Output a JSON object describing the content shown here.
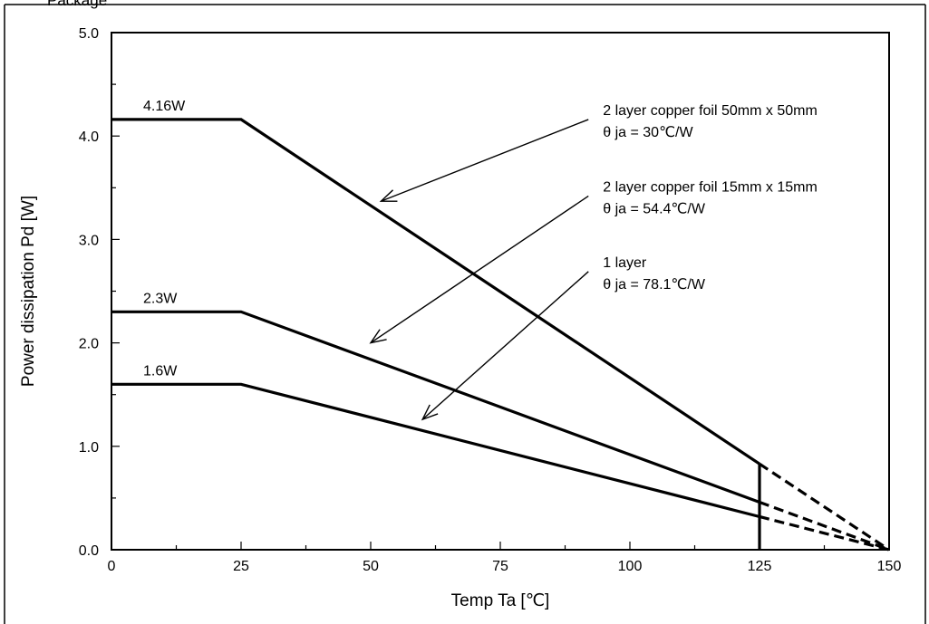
{
  "header_fragment": "Package",
  "chart_data": {
    "type": "line",
    "title": "",
    "xlabel": "Temp Ta [℃]",
    "ylabel": "Power dissipation Pd [W]",
    "xlim": [
      0,
      150
    ],
    "ylim": [
      0,
      5
    ],
    "xticks": [
      0,
      25,
      50,
      75,
      100,
      125,
      150
    ],
    "xtick_labels": [
      "0",
      "25",
      "50",
      "75",
      "100",
      "125",
      "150"
    ],
    "yticks": [
      0,
      1,
      2,
      3,
      4,
      5
    ],
    "ytick_labels": [
      "0.0",
      "1.0",
      "2.0",
      "3.0",
      "4.0",
      "5.0"
    ],
    "grid": false,
    "cutoff_x": 125,
    "series": [
      {
        "value_label": "4.16W",
        "points": [
          [
            0,
            4.16
          ],
          [
            25,
            4.16
          ],
          [
            125,
            0.83
          ]
        ],
        "extrapolated": [
          [
            125,
            0.83
          ],
          [
            150,
            0
          ]
        ]
      },
      {
        "value_label": "2.3W",
        "points": [
          [
            0,
            2.3
          ],
          [
            25,
            2.3
          ],
          [
            125,
            0.46
          ]
        ],
        "extrapolated": [
          [
            125,
            0.46
          ],
          [
            150,
            0
          ]
        ]
      },
      {
        "value_label": "1.6W",
        "points": [
          [
            0,
            1.6
          ],
          [
            25,
            1.6
          ],
          [
            125,
            0.32
          ]
        ],
        "extrapolated": [
          [
            125,
            0.32
          ],
          [
            150,
            0
          ]
        ]
      }
    ],
    "annotations": [
      {
        "lines": [
          "2 layer copper foil 50mm x 50mm",
          "θ  ja = 30℃/W"
        ],
        "arrow_from": [
          92,
          4.16
        ],
        "arrow_to": [
          52,
          3.37
        ]
      },
      {
        "lines": [
          "2 layer copper foil 15mm x 15mm",
          "θ  ja = 54.4℃/W"
        ],
        "arrow_from": [
          92,
          3.42
        ],
        "arrow_to": [
          50,
          2.0
        ]
      },
      {
        "lines": [
          "1 layer",
          "θ  ja = 78.1℃/W"
        ],
        "arrow_from": [
          92,
          2.69
        ],
        "arrow_to": [
          60,
          1.26
        ]
      }
    ]
  }
}
